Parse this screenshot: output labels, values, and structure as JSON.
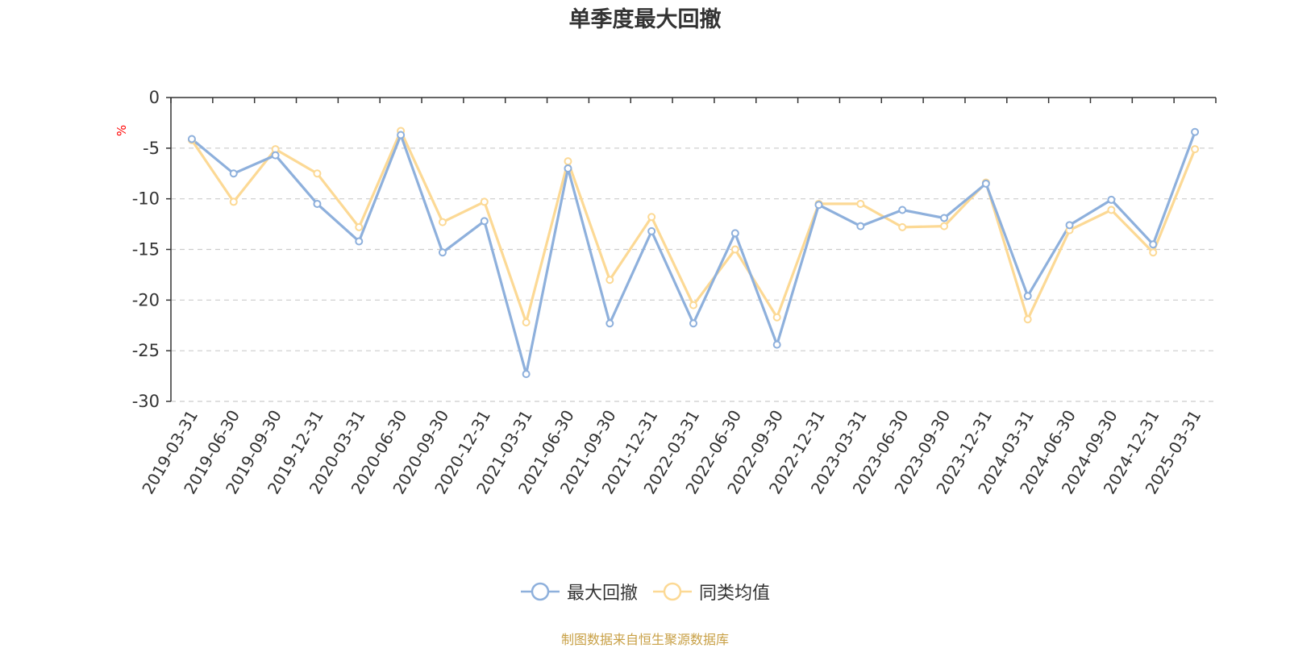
{
  "chart_data": {
    "type": "line",
    "title": "单季度最大回撤",
    "ylabel": "%",
    "ylim": [
      -30,
      0
    ],
    "yticks": [
      0,
      -5,
      -10,
      -15,
      -20,
      -25,
      -30
    ],
    "grid": true,
    "legend_position": "bottom-center",
    "categories": [
      "2019-03-31",
      "2019-06-30",
      "2019-09-30",
      "2019-12-31",
      "2020-03-31",
      "2020-06-30",
      "2020-09-30",
      "2020-12-31",
      "2021-03-31",
      "2021-06-30",
      "2021-09-30",
      "2021-12-31",
      "2022-03-31",
      "2022-06-30",
      "2022-09-30",
      "2022-12-31",
      "2023-03-31",
      "2023-06-30",
      "2023-09-30",
      "2023-12-31",
      "2024-03-31",
      "2024-06-30",
      "2024-09-30",
      "2024-12-31",
      "2025-03-31"
    ],
    "series": [
      {
        "name": "最大回撤",
        "color": "#8eb0dc",
        "values": [
          -4.1,
          -7.5,
          -5.7,
          -10.5,
          -14.2,
          -3.7,
          -15.3,
          -12.2,
          -27.3,
          -7.0,
          -22.3,
          -13.2,
          -22.3,
          -13.4,
          -24.4,
          -10.6,
          -12.7,
          -11.1,
          -11.9,
          -8.5,
          -19.6,
          -12.6,
          -10.1,
          -14.5,
          -3.4
        ]
      },
      {
        "name": "同类均值",
        "color": "#fcd995",
        "values": [
          -4.2,
          -10.3,
          -5.1,
          -7.5,
          -12.8,
          -3.3,
          -12.3,
          -10.3,
          -22.2,
          -6.3,
          -18.0,
          -11.8,
          -20.5,
          -15.0,
          -21.7,
          -10.5,
          -10.5,
          -12.8,
          -12.7,
          -8.4,
          -21.9,
          -13.1,
          -11.1,
          -15.3,
          -5.1
        ]
      }
    ]
  },
  "source_note": "制图数据来自恒生聚源数据库"
}
